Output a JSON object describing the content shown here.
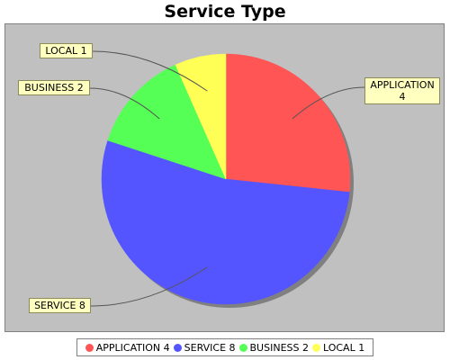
{
  "chart_data": {
    "type": "pie",
    "title": "Service Type",
    "slices": [
      {
        "label": "APPLICATION 4",
        "value": 4,
        "color": "#ff5555"
      },
      {
        "label": "SERVICE 8",
        "value": 8,
        "color": "#5555ff"
      },
      {
        "label": "BUSINESS 2",
        "value": 2,
        "color": "#55ff55"
      },
      {
        "label": "LOCAL 1",
        "value": 1,
        "color": "#ffff55"
      }
    ],
    "callouts": {
      "application_line1": "APPLICATION",
      "application_line2": "4"
    },
    "legend_position": "bottom",
    "background_color": "#c0c0c0"
  }
}
